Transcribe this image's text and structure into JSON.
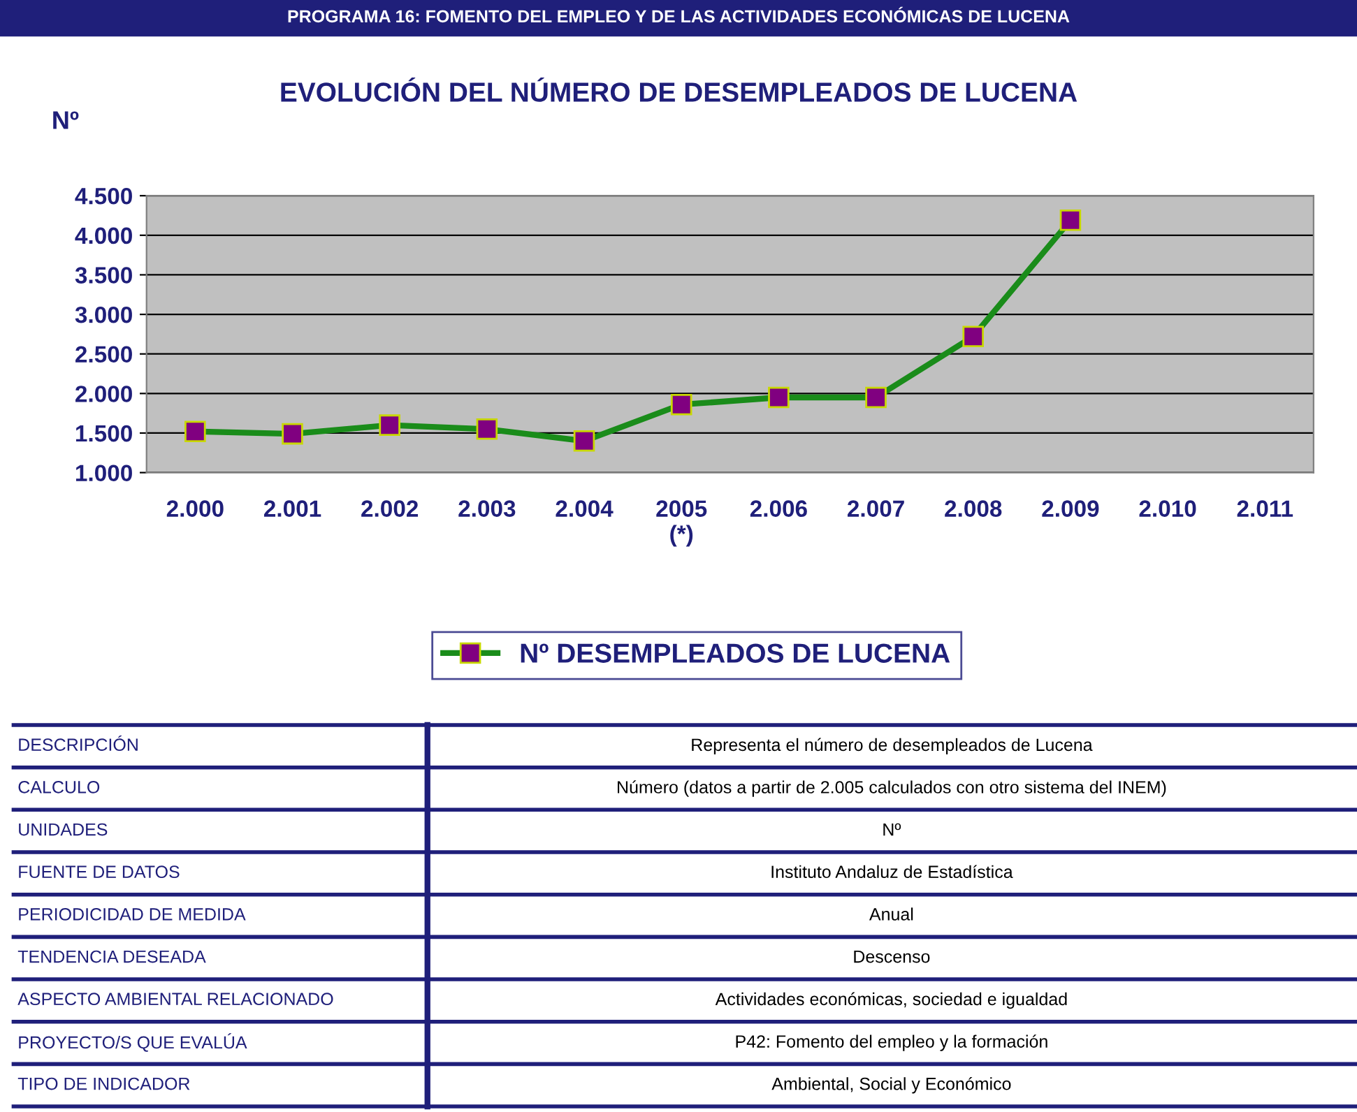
{
  "chart_data": {
    "type": "line",
    "title": "PROGRAMA 16: FOMENTO DEL EMPLEO Y DE LAS ACTIVIDADES ECONÓMICAS DE LUCENA",
    "subtitle": "EVOLUCIÓN DEL NÚMERO DE DESEMPLEADOS DE LUCENA",
    "ylabel": "Nº",
    "categories": [
      "2.000",
      "2.001",
      "2.002",
      "2.003",
      "2.004",
      "2005\n(*)",
      "2.006",
      "2.007",
      "2.008",
      "2.009",
      "2.010",
      "2.011"
    ],
    "series": [
      {
        "name": "Nº DESEMPLEADOS DE LUCENA",
        "color": "#1a8c1a",
        "values": [
          1520,
          1490,
          1600,
          1550,
          1400,
          1860,
          1950,
          1950,
          2720,
          4190,
          null,
          null
        ]
      }
    ],
    "ylim": [
      1000,
      4500
    ],
    "yticks": [
      {
        "value": 1000,
        "label": "1.000"
      },
      {
        "value": 1500,
        "label": "1.500"
      },
      {
        "value": 2000,
        "label": "2.000"
      },
      {
        "value": 2500,
        "label": "2.500"
      },
      {
        "value": 3000,
        "label": "3.000"
      },
      {
        "value": 3500,
        "label": "3.500"
      },
      {
        "value": 4000,
        "label": "4.000"
      },
      {
        "value": 4500,
        "label": "4.500"
      }
    ],
    "grid": "y",
    "legend": "bottom",
    "marker": "square",
    "line_style": "solid",
    "annotations": [
      "DESCRIPCIÓN",
      "Representa el número de desempleados de Lucena",
      "CALCULO",
      "Número (datos a partir de 2.005 calculados con otro sistema del INEM)",
      "UNIDADES",
      "Nº",
      "FUENTE DE DATOS",
      "Instituto Andaluz de Estadística",
      "PERIODICIDAD DE MEDIDA",
      "Anual",
      "TENDENCIA DESEADA",
      "Descenso",
      "ASPECTO AMBIENTAL RELACIONADO",
      "Actividades económicas, sociedad e igualdad",
      "PROYECTO/S QUE EVALÚA",
      "P42: Fomento del empleo y la formación",
      "TIPO DE INDICADOR",
      "Ambiental, Social y Económico"
    ]
  }
}
